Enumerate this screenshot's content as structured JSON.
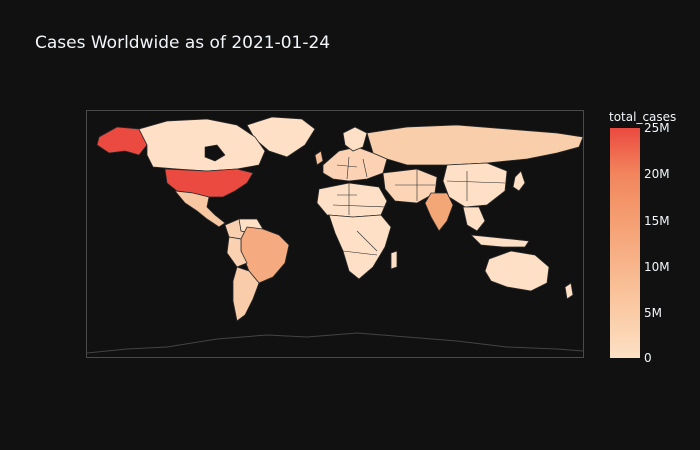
{
  "title": "Cases Worldwide as of 2021-01-24",
  "colorbar": {
    "title": "total_cases",
    "ticks": [
      "25M",
      "20M",
      "15M",
      "10M",
      "5M",
      "0"
    ],
    "colors": [
      "#fde0c5",
      "#facba6",
      "#f8b58b",
      "#f59e72",
      "#f2855d",
      "#eb4a40"
    ]
  },
  "map": {
    "background": "#111111",
    "border_color": "#2a2a2a",
    "projection": "equirectangular",
    "highlighted_countries": [
      "United States",
      "India",
      "Brazil"
    ]
  }
}
